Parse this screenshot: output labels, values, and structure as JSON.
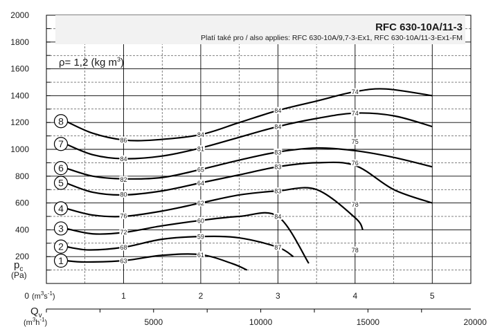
{
  "title": "RFC 630-10A/11-3",
  "subtitle": "Platí také pro / also applies: RFC 630-10A/9,7-3-Ex1, RFC 630-10A/11-3-Ex1-FM",
  "density_label": "ρ= 1,2 (kg m",
  "density_exp": "3",
  "density_close": ")",
  "y_axis": {
    "label_main": "p",
    "label_sub": "c",
    "unit": "(Pa)",
    "ticks": [
      0,
      200,
      400,
      600,
      800,
      1000,
      1200,
      1400,
      1600,
      1800,
      2000
    ],
    "range": [
      0,
      2000
    ]
  },
  "x_axis_top": {
    "unit_prefix": "(m",
    "unit_exp": "3",
    "unit_mid": "s",
    "unit_exp2": "-1",
    "unit_close": ")",
    "ticks": [
      1,
      2,
      3,
      4,
      5
    ],
    "range": [
      0,
      5.5
    ]
  },
  "x_axis_bottom": {
    "label_main": "Q",
    "label_sub": "v",
    "unit_prefix": "(m",
    "unit_exp": "3",
    "unit_mid": "h",
    "unit_exp2": "-1",
    "unit_close": ")",
    "ticks": [
      5000,
      10000,
      15000,
      20000
    ],
    "range": [
      0,
      19800
    ]
  },
  "colors": {
    "grid": "#000000",
    "curve": "#000000",
    "label_black": "#222222",
    "label_red": "#e03030",
    "title_box": "#f2f2f2"
  },
  "chart_data": {
    "type": "line",
    "title": "RFC 630-10A/11-3",
    "xlabel": "Qv",
    "ylabel": "pc (Pa)",
    "xlim": [
      0,
      5.5
    ],
    "ylim": [
      0,
      2000
    ],
    "grid": true,
    "series": [
      {
        "name": "1",
        "x": [
          0.25,
          0.5,
          1.0,
          1.5,
          2.0,
          2.4,
          2.6
        ],
        "y": [
          170,
          160,
          170,
          210,
          215,
          150,
          100
        ]
      },
      {
        "name": "2",
        "x": [
          0.25,
          0.55,
          1.0,
          1.5,
          2.0,
          2.5,
          3.0,
          3.2
        ],
        "y": [
          275,
          250,
          270,
          330,
          350,
          340,
          270,
          200
        ]
      },
      {
        "name": "3",
        "x": [
          0.25,
          0.6,
          1.0,
          1.5,
          2.0,
          2.5,
          3.0,
          3.4
        ],
        "y": [
          410,
          370,
          380,
          430,
          470,
          500,
          500,
          150
        ]
      },
      {
        "name": "4",
        "x": [
          0.25,
          0.6,
          1.0,
          1.5,
          2.0,
          2.5,
          3.0,
          3.5,
          4.0,
          4.1
        ],
        "y": [
          560,
          510,
          500,
          540,
          600,
          660,
          690,
          700,
          490,
          400
        ]
      },
      {
        "name": "5",
        "x": [
          0.25,
          0.6,
          1.0,
          1.5,
          2.0,
          2.5,
          3.0,
          3.5,
          4.0,
          4.5,
          5.0
        ],
        "y": [
          750,
          680,
          660,
          690,
          750,
          810,
          870,
          900,
          880,
          700,
          600
        ]
      },
      {
        "name": "6",
        "x": [
          0.25,
          0.6,
          1.0,
          1.5,
          2.0,
          2.5,
          3.0,
          3.5,
          4.0,
          4.5,
          5.0
        ],
        "y": [
          860,
          800,
          780,
          790,
          850,
          920,
          980,
          1010,
          990,
          940,
          870
        ]
      },
      {
        "name": "7",
        "x": [
          0.25,
          0.6,
          1.0,
          1.5,
          2.0,
          2.5,
          3.0,
          3.5,
          4.0,
          4.5,
          5.0
        ],
        "y": [
          1040,
          960,
          930,
          950,
          1010,
          1090,
          1170,
          1230,
          1270,
          1250,
          1170
        ]
      },
      {
        "name": "8",
        "x": [
          0.25,
          0.6,
          1.0,
          1.4,
          2.0,
          2.5,
          3.0,
          3.5,
          4.0,
          4.4,
          5.0
        ],
        "y": [
          1210,
          1120,
          1070,
          1070,
          1110,
          1200,
          1290,
          1360,
          1430,
          1450,
          1400
        ]
      }
    ],
    "circle_labels": [
      "1",
      "2",
      "3",
      "4",
      "5",
      "6",
      "7",
      "8"
    ],
    "annotations": [
      {
        "text": "86",
        "x": 1.0,
        "y": 1070,
        "color": "black"
      },
      {
        "text": "84",
        "x": 1.0,
        "y": 930,
        "color": "black"
      },
      {
        "text": "82",
        "x": 1.0,
        "y": 775,
        "color": "black"
      },
      {
        "text": "80",
        "x": 1.0,
        "y": 665,
        "color": "black"
      },
      {
        "text": "76",
        "x": 1.0,
        "y": 505,
        "color": "black"
      },
      {
        "text": "72",
        "x": 1.0,
        "y": 385,
        "color": "black"
      },
      {
        "text": "68",
        "x": 1.0,
        "y": 270,
        "color": "black"
      },
      {
        "text": "63",
        "x": 1.0,
        "y": 170,
        "color": "black"
      },
      {
        "text": "84",
        "x": 2.0,
        "y": 1110,
        "color": "red"
      },
      {
        "text": "81",
        "x": 2.0,
        "y": 1005,
        "color": "red"
      },
      {
        "text": "65",
        "x": 2.0,
        "y": 850,
        "color": "red"
      },
      {
        "text": "64",
        "x": 2.0,
        "y": 750,
        "color": "red"
      },
      {
        "text": "62",
        "x": 2.0,
        "y": 600,
        "color": "red"
      },
      {
        "text": "60",
        "x": 2.0,
        "y": 470,
        "color": "red"
      },
      {
        "text": "59",
        "x": 2.0,
        "y": 350,
        "color": "red"
      },
      {
        "text": "61",
        "x": 2.0,
        "y": 215,
        "color": "red"
      },
      {
        "text": "84",
        "x": 3.0,
        "y": 1290,
        "color": "black"
      },
      {
        "text": "84",
        "x": 3.0,
        "y": 1170,
        "color": "black"
      },
      {
        "text": "83",
        "x": 3.0,
        "y": 980,
        "color": "black"
      },
      {
        "text": "83",
        "x": 3.0,
        "y": 870,
        "color": "black"
      },
      {
        "text": "83",
        "x": 3.0,
        "y": 690,
        "color": "black"
      },
      {
        "text": "84",
        "x": 3.0,
        "y": 500,
        "color": "black"
      },
      {
        "text": "87",
        "x": 3.0,
        "y": 270,
        "color": "black"
      },
      {
        "text": "74",
        "x": 4.0,
        "y": 1430,
        "color": "red"
      },
      {
        "text": "74",
        "x": 4.0,
        "y": 1270,
        "color": "red"
      },
      {
        "text": "75",
        "x": 4.0,
        "y": 1060,
        "color": "red"
      },
      {
        "text": "76",
        "x": 4.0,
        "y": 900,
        "color": "red"
      },
      {
        "text": "78",
        "x": 4.0,
        "y": 590,
        "color": "red"
      },
      {
        "text": "78",
        "x": 4.0,
        "y": 250,
        "color": "red"
      }
    ]
  }
}
